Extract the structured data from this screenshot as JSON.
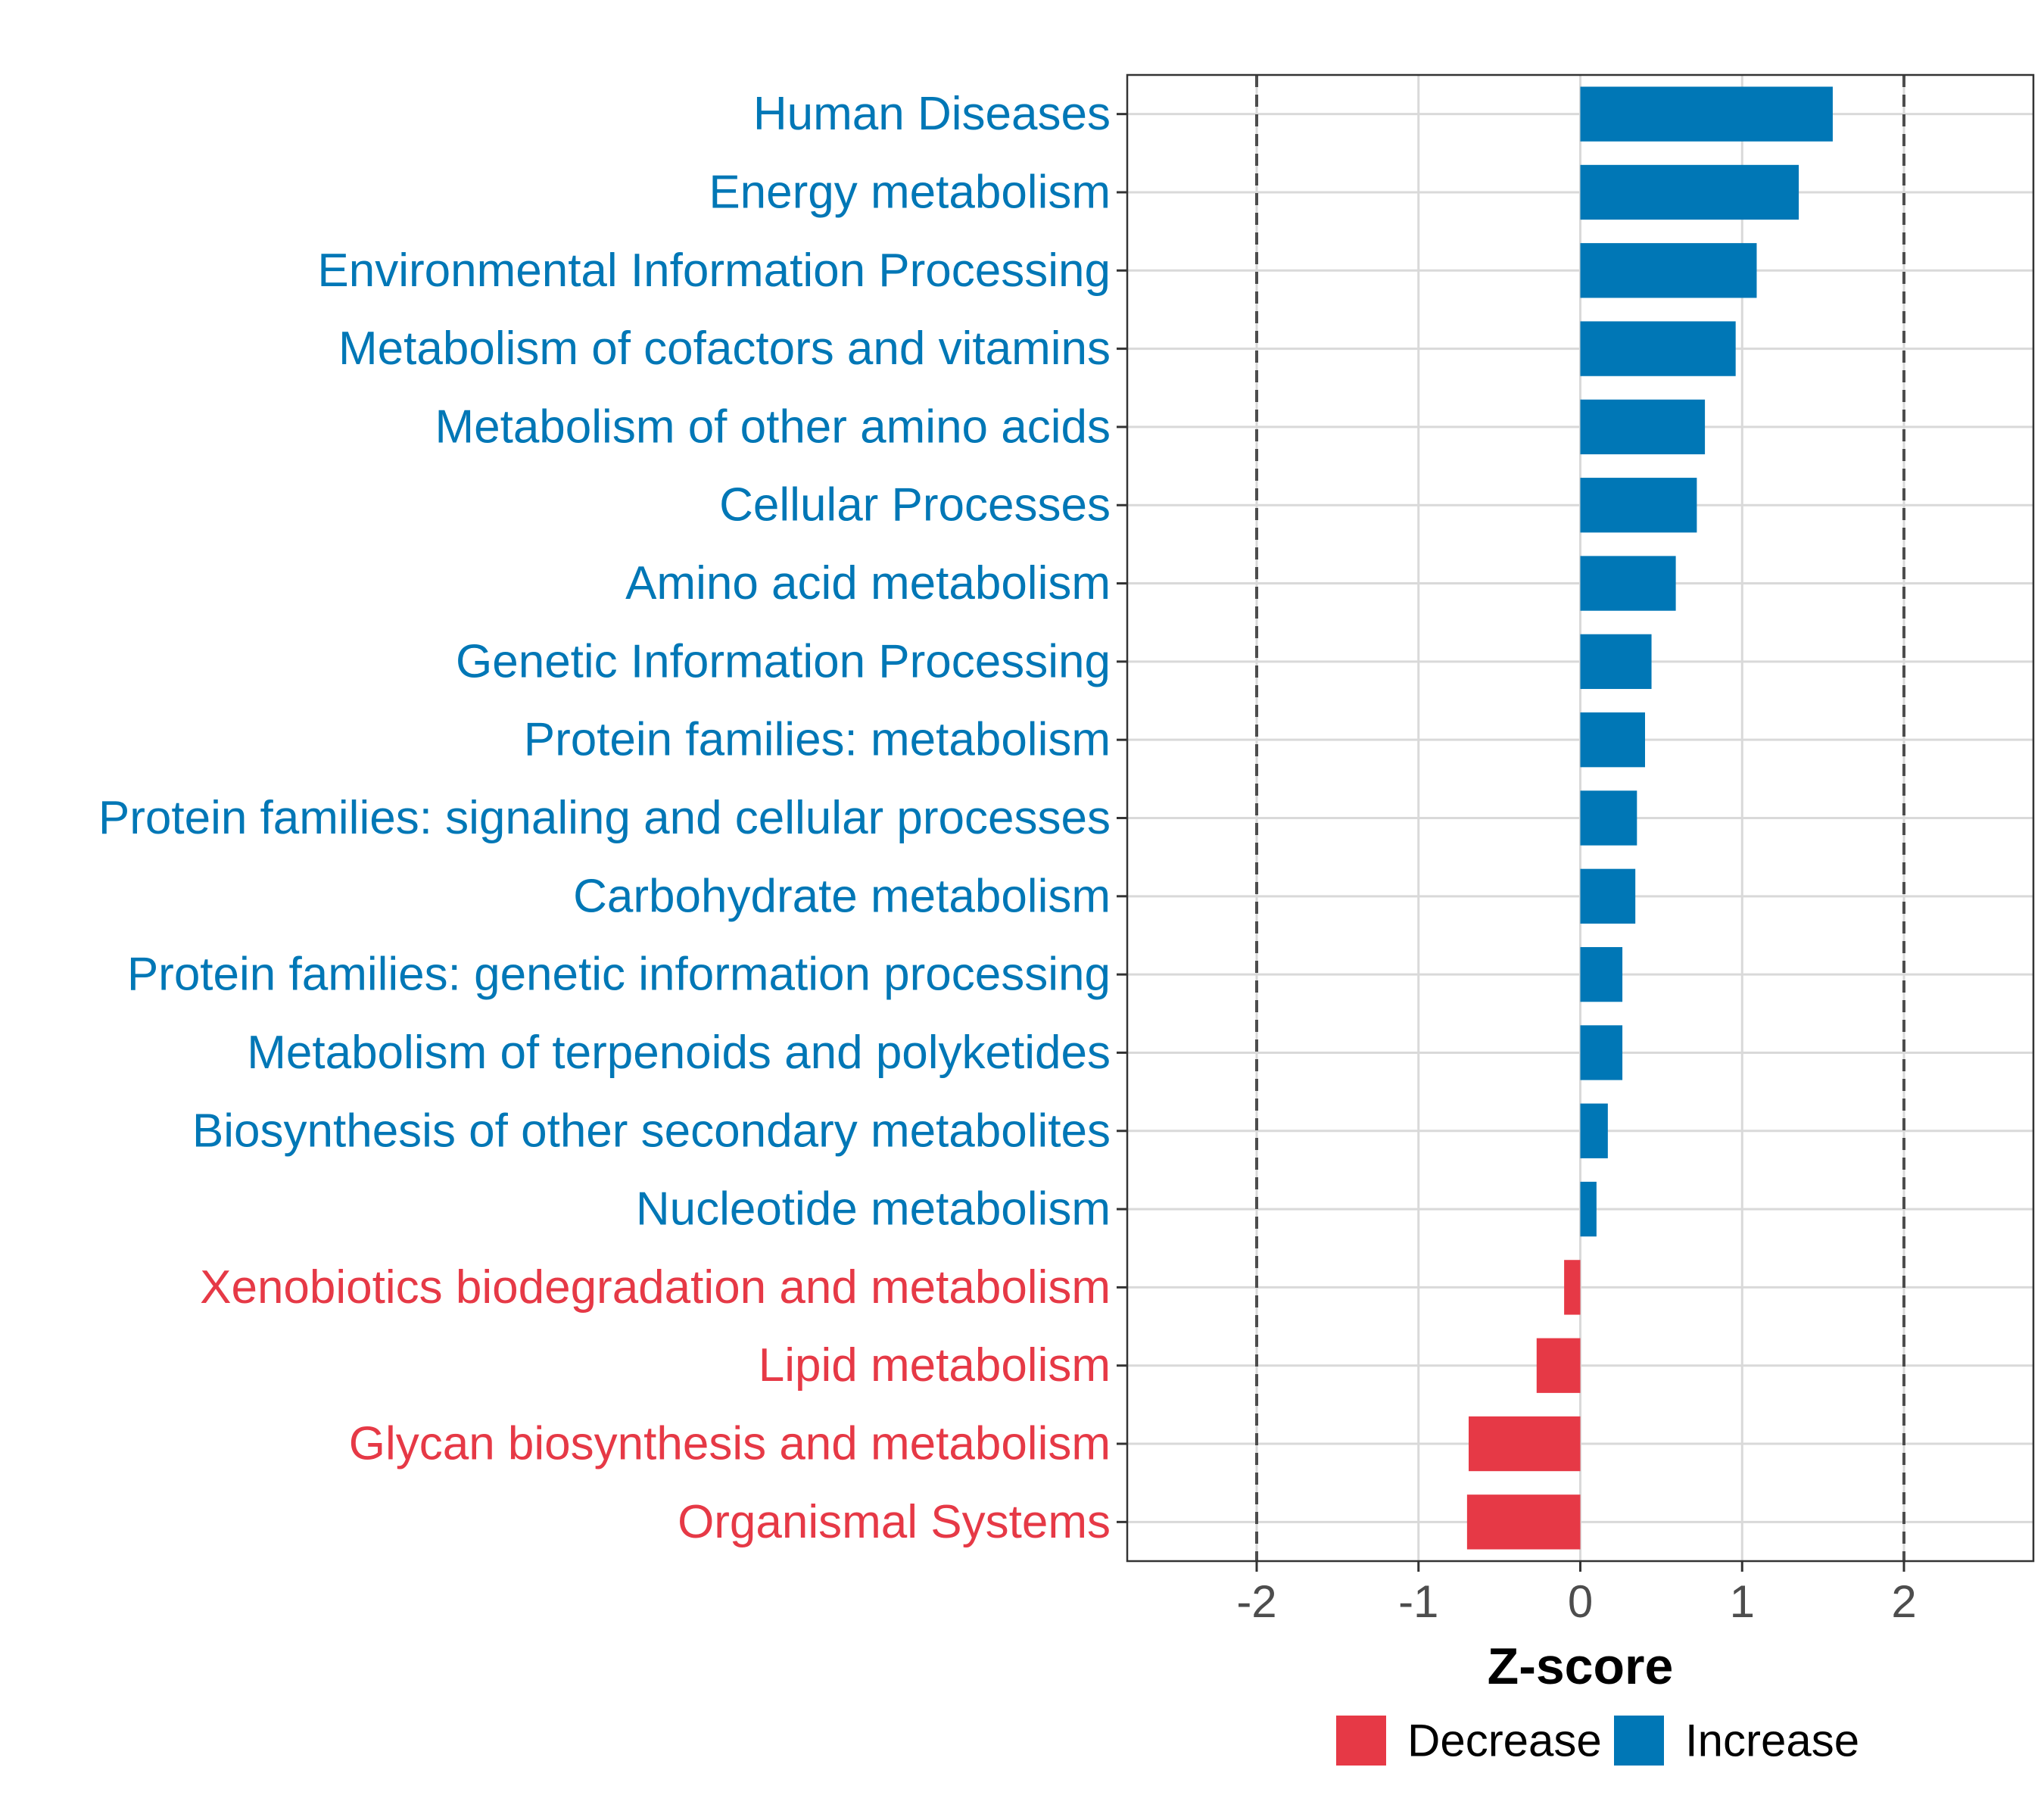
{
  "chart_data": {
    "type": "bar",
    "orientation": "horizontal",
    "xlabel": "Z-score",
    "xlim": [
      -2.8,
      2.8
    ],
    "xticks": [
      "-2",
      "-1",
      "0",
      "1",
      "2"
    ],
    "reference_lines": [
      -2,
      2
    ],
    "grid": true,
    "colors": {
      "Increase": "#0077b6",
      "Decrease": "#e63946"
    },
    "categories": [
      "Human Diseases",
      "Energy metabolism",
      "Environmental Information Processing",
      "Metabolism of cofactors and vitamins",
      "Metabolism of other amino acids",
      "Cellular Processes",
      "Amino acid metabolism",
      "Genetic Information Processing",
      "Protein families: metabolism",
      "Protein families: signaling and cellular processes",
      "Carbohydrate metabolism",
      "Protein families: genetic information processing",
      "Metabolism of terpenoids and polyketides",
      "Biosynthesis of other secondary metabolites",
      "Nucleotide metabolism",
      "Xenobiotics biodegradation and metabolism",
      "Lipid metabolism",
      "Glycan biosynthesis and metabolism",
      "Organismal Systems"
    ],
    "values": [
      1.56,
      1.35,
      1.09,
      0.96,
      0.77,
      0.72,
      0.59,
      0.44,
      0.4,
      0.35,
      0.34,
      0.26,
      0.26,
      0.17,
      0.1,
      -0.1,
      -0.27,
      -0.69,
      -0.7
    ],
    "legend": {
      "position": "bottom",
      "items": [
        {
          "label": "Decrease",
          "color": "#e63946"
        },
        {
          "label": "Increase",
          "color": "#0077b6"
        }
      ]
    }
  }
}
